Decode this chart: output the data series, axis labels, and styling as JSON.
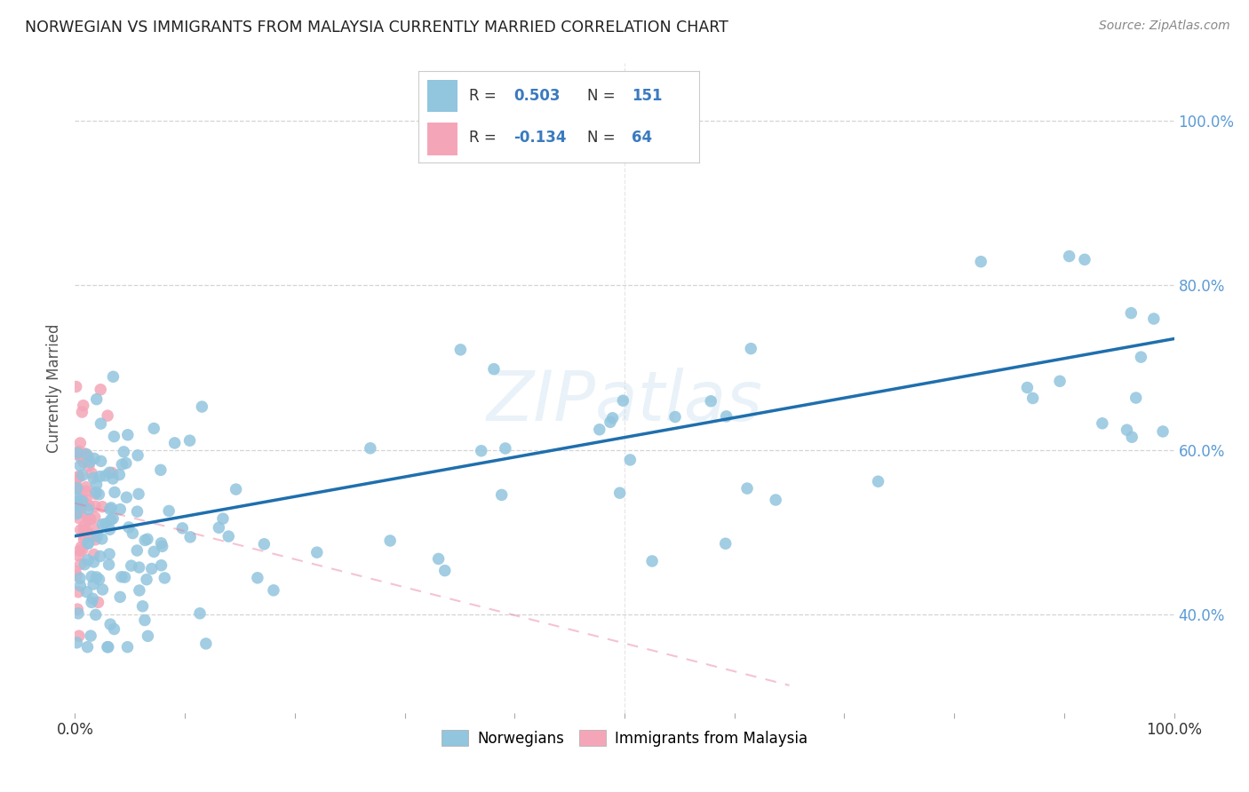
{
  "title": "NORWEGIAN VS IMMIGRANTS FROM MALAYSIA CURRENTLY MARRIED CORRELATION CHART",
  "source": "Source: ZipAtlas.com",
  "ylabel": "Currently Married",
  "blue_color": "#92c5de",
  "pink_color": "#f4a6b8",
  "blue_line_color": "#1f6fad",
  "pink_line_color": "#e87a9a",
  "watermark": "ZIPatlas",
  "background_color": "#ffffff",
  "grid_color": "#d0d0d0",
  "n1": 151,
  "n2": 64,
  "xlim": [
    0.0,
    1.0
  ],
  "ylim": [
    0.28,
    1.07
  ],
  "blue_trend_x0": 0.0,
  "blue_trend_y0": 0.495,
  "blue_trend_x1": 1.0,
  "blue_trend_y1": 0.735,
  "pink_trend_x0": 0.0,
  "pink_trend_y0": 0.535,
  "pink_trend_x1": 0.22,
  "pink_trend_y1": 0.46,
  "seed": 7
}
